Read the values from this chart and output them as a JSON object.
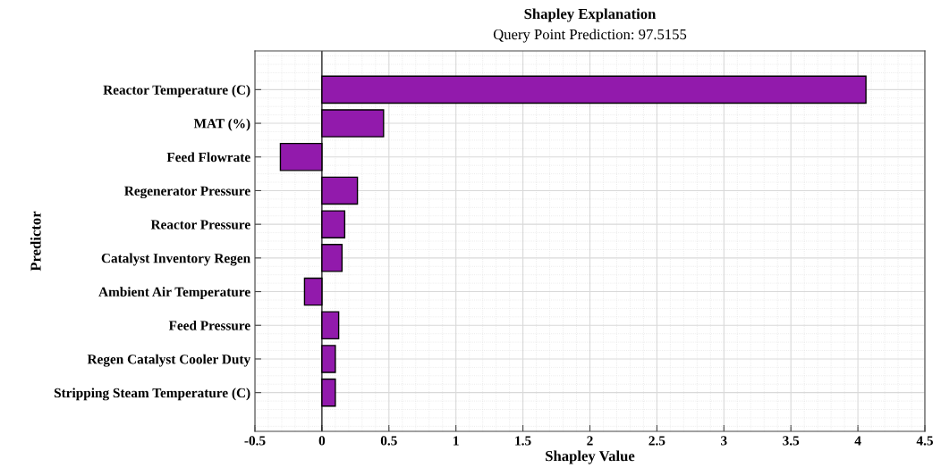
{
  "chart_data": {
    "type": "bar",
    "orientation": "horizontal",
    "title": "Shapley Explanation",
    "subtitle": "Query Point Prediction: 97.5155",
    "xlabel": "Shapley Value",
    "ylabel": "Predictor",
    "categories": [
      "Reactor Temperature (C)",
      "MAT (%)",
      "Feed Flowrate",
      "Regenerator Pressure",
      "Reactor Pressure",
      "Catalyst Inventory Regen",
      "Ambient Air Temperature",
      "Feed Pressure",
      "Regen Catalyst Cooler Duty",
      "Stripping Steam Temperature (C)"
    ],
    "values": [
      4.06,
      0.46,
      -0.31,
      0.265,
      0.17,
      0.15,
      -0.13,
      0.125,
      0.1,
      0.1
    ],
    "color": "#921aac",
    "xlim": [
      -0.5,
      4.5
    ],
    "xticks": [
      {
        "value": -0.5,
        "label": "-0.5"
      },
      0,
      0.5,
      1,
      1.5,
      2,
      2.5,
      3,
      3.5,
      4,
      4.5
    ],
    "grid": true,
    "legend": false
  }
}
